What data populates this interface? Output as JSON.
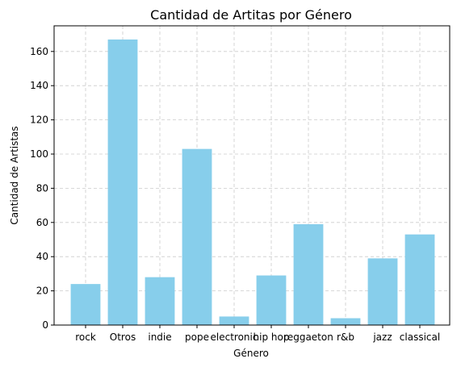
{
  "chart_data": {
    "type": "bar",
    "title": "Cantidad de Artitas por Género",
    "xlabel": "Género",
    "ylabel": "Cantidad de Artistas",
    "categories": [
      "rock",
      "Otros",
      "indie",
      "pope",
      "electronic",
      "hip hop",
      "reggaeton",
      "r&b",
      "jazz",
      "classical"
    ],
    "values": [
      24,
      167,
      28,
      103,
      5,
      29,
      59,
      4,
      39,
      53
    ],
    "ylim": [
      0,
      175
    ],
    "yticks": [
      0,
      20,
      40,
      60,
      80,
      100,
      120,
      140,
      160
    ],
    "grid": true,
    "bar_color": "#87ceeb"
  }
}
